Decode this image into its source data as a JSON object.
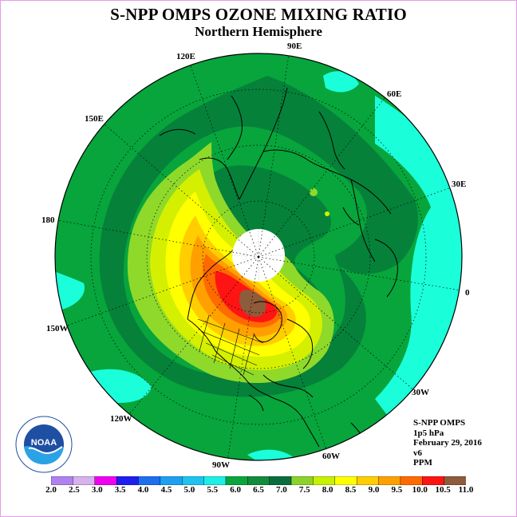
{
  "header": {
    "title": "S-NPP OMPS OZONE MIXING RATIO",
    "subtitle": "Northern Hemisphere"
  },
  "map": {
    "projection": "north polar stereographic",
    "longitude_labels": [
      "90E",
      "120E",
      "60E",
      "150E",
      "30E",
      "180",
      "0",
      "150W",
      "30W",
      "120W",
      "60W",
      "90W"
    ],
    "no_data_region": "north pole cap (white)",
    "colors": {
      "background_field": "#07a53c",
      "dark_green": "#05813a",
      "aqua": "#1affd9",
      "light_green": "#8fd92a",
      "yellow_green": "#d4f000",
      "yellow": "#ffff00",
      "gold": "#ffcd00",
      "orange": "#ffa000",
      "dark_orange": "#ff6a00",
      "red": "#ff1414",
      "brown": "#8e5b3b"
    }
  },
  "logo": {
    "name": "NOAA",
    "ring_text": "NATIONAL OCEANIC AND ATMOSPHERIC ADMINISTRATION",
    "bottom_text": "U.S. DEPARTMENT OF COMMERCE"
  },
  "info": {
    "instrument": "S-NPP OMPS",
    "level": "1p5 hPa",
    "date": "February 29, 2016",
    "version": "v6",
    "units": "PPM"
  },
  "colorbar": {
    "ticks": [
      "2.0",
      "2.5",
      "3.0",
      "3.5",
      "4.0",
      "4.5",
      "5.0",
      "5.5",
      "6.0",
      "6.5",
      "7.0",
      "7.5",
      "8.0",
      "8.5",
      "9.0",
      "9.5",
      "10.0",
      "10.5",
      "11.0"
    ],
    "colors": [
      "#b082f0",
      "#d7b2ef",
      "#f000f0",
      "#1e1ef0",
      "#1e6ef0",
      "#1ea0f0",
      "#1ec3f0",
      "#1af0e6",
      "#0aa53c",
      "#128c3c",
      "#0a6e3c",
      "#8cd22a",
      "#c8f000",
      "#ffff00",
      "#ffcd00",
      "#ffa000",
      "#ff6a00",
      "#ff1414"
    ],
    "last_color": "#8e5b3b"
  }
}
